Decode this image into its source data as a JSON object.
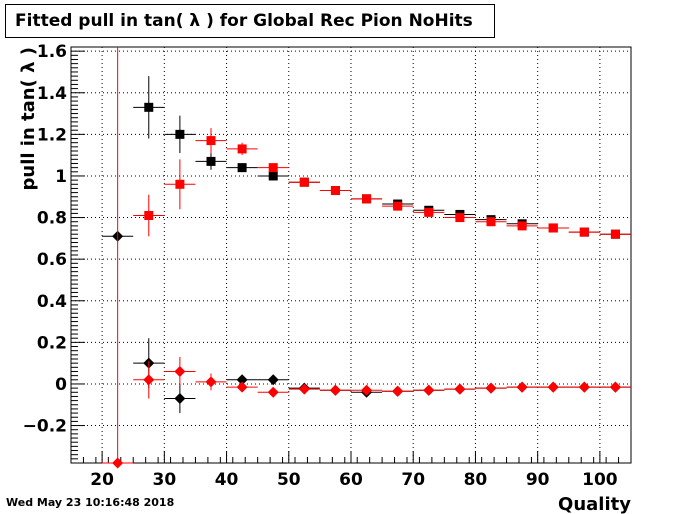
{
  "timestamp": "Wed May 23 10:16:48 2018",
  "chart_data": {
    "type": "scatter",
    "title": "Fitted pull in tan( λ ) for Global Rec Pion NoHits",
    "xlabel": "Quality",
    "ylabel": "pull in tan( λ )",
    "xlim": [
      15,
      105
    ],
    "ylim": [
      -0.38,
      1.62
    ],
    "x_ticks": [
      20,
      30,
      40,
      50,
      60,
      70,
      80,
      90,
      100
    ],
    "y_ticks": [
      -0.2,
      0,
      0.2,
      0.4,
      0.6,
      0.8,
      1,
      1.2,
      1.4,
      1.6
    ],
    "grid": true,
    "x_bin_half_width": 2.5,
    "series": [
      {
        "color": "#000000",
        "marker": "square",
        "points": [
          {
            "x": 27.5,
            "y": 1.33,
            "err": 0.15
          },
          {
            "x": 32.5,
            "y": 1.2,
            "err": 0.09
          },
          {
            "x": 37.5,
            "y": 1.07,
            "err": 0.04
          },
          {
            "x": 42.5,
            "y": 1.04,
            "err": 0.02
          },
          {
            "x": 47.5,
            "y": 1.0,
            "err": 0.015
          },
          {
            "x": 52.5,
            "y": 0.97,
            "err": 0.01
          },
          {
            "x": 57.5,
            "y": 0.93,
            "err": 0.01
          },
          {
            "x": 62.5,
            "y": 0.89,
            "err": 0.01
          },
          {
            "x": 67.5,
            "y": 0.865,
            "err": 0.01
          },
          {
            "x": 72.5,
            "y": 0.835,
            "err": 0.01
          },
          {
            "x": 77.5,
            "y": 0.815,
            "err": 0.01
          },
          {
            "x": 82.5,
            "y": 0.79,
            "err": 0.01
          },
          {
            "x": 87.5,
            "y": 0.77,
            "err": 0.01
          },
          {
            "x": 92.5,
            "y": 0.75,
            "err": 0.01
          },
          {
            "x": 97.5,
            "y": 0.73,
            "err": 0.01
          },
          {
            "x": 102.5,
            "y": 0.72,
            "err": 0.01
          }
        ]
      },
      {
        "color": "#ff0000",
        "marker": "square",
        "points": [
          {
            "x": 27.5,
            "y": 0.81,
            "err": 0.1
          },
          {
            "x": 32.5,
            "y": 0.96,
            "err": 0.12
          },
          {
            "x": 37.5,
            "y": 1.17,
            "err": 0.06
          },
          {
            "x": 42.5,
            "y": 1.13,
            "err": 0.03
          },
          {
            "x": 47.5,
            "y": 1.04,
            "err": 0.02
          },
          {
            "x": 52.5,
            "y": 0.97,
            "err": 0.01
          },
          {
            "x": 57.5,
            "y": 0.93,
            "err": 0.01
          },
          {
            "x": 62.5,
            "y": 0.89,
            "err": 0.01
          },
          {
            "x": 67.5,
            "y": 0.855,
            "err": 0.01
          },
          {
            "x": 72.5,
            "y": 0.825,
            "err": 0.01
          },
          {
            "x": 77.5,
            "y": 0.8,
            "err": 0.01
          },
          {
            "x": 82.5,
            "y": 0.78,
            "err": 0.01
          },
          {
            "x": 87.5,
            "y": 0.76,
            "err": 0.01
          },
          {
            "x": 92.5,
            "y": 0.75,
            "err": 0.01
          },
          {
            "x": 97.5,
            "y": 0.73,
            "err": 0.01
          },
          {
            "x": 102.5,
            "y": 0.72,
            "err": 0.01
          }
        ]
      },
      {
        "color": "#000000",
        "marker": "diamond",
        "points": [
          {
            "x": 22.5,
            "y": 0.71,
            "err": 0.0
          },
          {
            "x": 27.5,
            "y": 0.1,
            "err": 0.12
          },
          {
            "x": 32.5,
            "y": -0.07,
            "err": 0.07
          },
          {
            "x": 42.5,
            "y": 0.02,
            "err": 0.02
          },
          {
            "x": 47.5,
            "y": 0.02,
            "err": 0.015
          },
          {
            "x": 52.5,
            "y": -0.02,
            "err": 0.01
          },
          {
            "x": 57.5,
            "y": -0.03,
            "err": 0.01
          },
          {
            "x": 62.5,
            "y": -0.04,
            "err": 0.01
          },
          {
            "x": 67.5,
            "y": -0.035,
            "err": 0.01
          },
          {
            "x": 72.5,
            "y": -0.03,
            "err": 0.01
          },
          {
            "x": 77.5,
            "y": -0.025,
            "err": 0.01
          },
          {
            "x": 82.5,
            "y": -0.02,
            "err": 0.01
          },
          {
            "x": 87.5,
            "y": -0.015,
            "err": 0.01
          },
          {
            "x": 92.5,
            "y": -0.015,
            "err": 0.01
          },
          {
            "x": 97.5,
            "y": -0.015,
            "err": 0.01
          },
          {
            "x": 102.5,
            "y": -0.015,
            "err": 0.01
          }
        ]
      },
      {
        "color": "#ff0000",
        "marker": "diamond",
        "points": [
          {
            "x": 22.5,
            "y": -0.38,
            "err": 2.0
          },
          {
            "x": 27.5,
            "y": 0.02,
            "err": 0.09
          },
          {
            "x": 32.5,
            "y": 0.06,
            "err": 0.07
          },
          {
            "x": 37.5,
            "y": 0.01,
            "err": 0.04
          },
          {
            "x": 42.5,
            "y": -0.015,
            "err": 0.02
          },
          {
            "x": 47.5,
            "y": -0.04,
            "err": 0.015
          },
          {
            "x": 52.5,
            "y": -0.025,
            "err": 0.01
          },
          {
            "x": 57.5,
            "y": -0.03,
            "err": 0.01
          },
          {
            "x": 62.5,
            "y": -0.03,
            "err": 0.01
          },
          {
            "x": 67.5,
            "y": -0.035,
            "err": 0.01
          },
          {
            "x": 72.5,
            "y": -0.03,
            "err": 0.01
          },
          {
            "x": 77.5,
            "y": -0.025,
            "err": 0.01
          },
          {
            "x": 82.5,
            "y": -0.02,
            "err": 0.01
          },
          {
            "x": 87.5,
            "y": -0.015,
            "err": 0.01
          },
          {
            "x": 92.5,
            "y": -0.015,
            "err": 0.01
          },
          {
            "x": 97.5,
            "y": -0.015,
            "err": 0.01
          },
          {
            "x": 102.5,
            "y": -0.015,
            "err": 0.01
          }
        ]
      }
    ]
  }
}
